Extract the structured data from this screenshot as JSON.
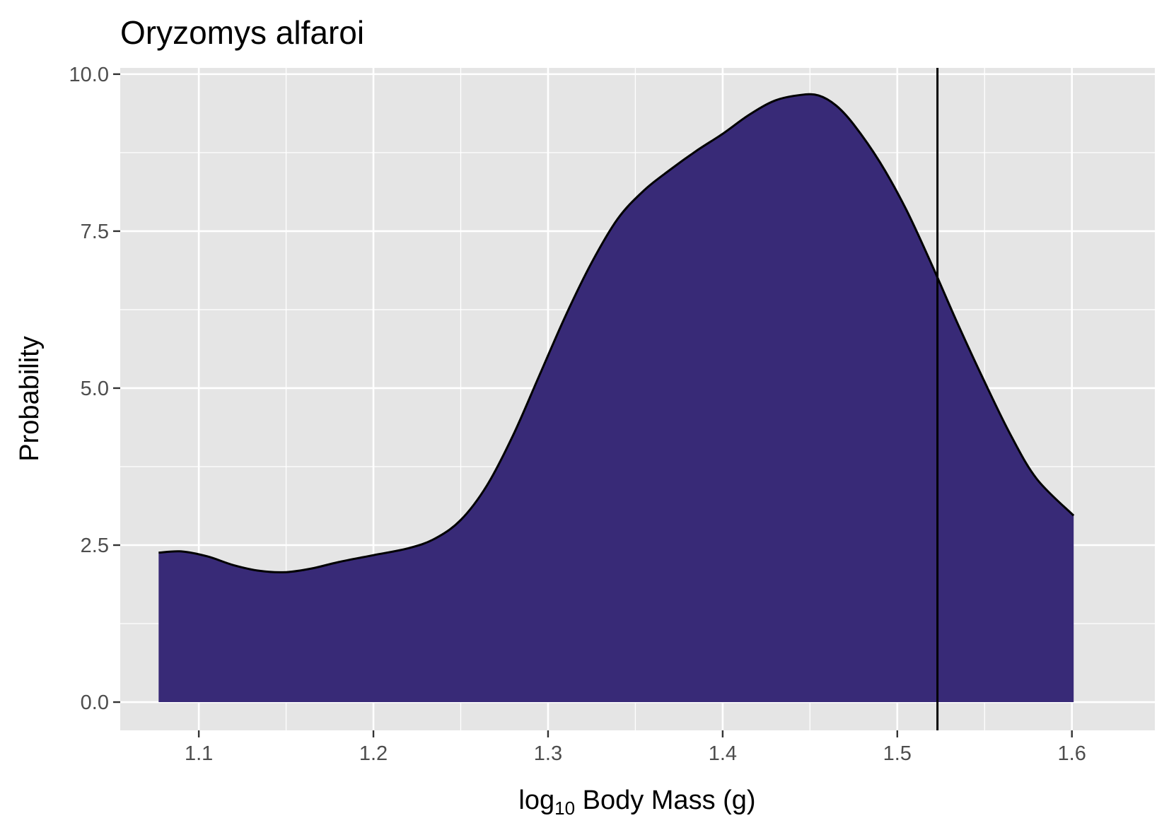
{
  "chart_data": {
    "type": "area",
    "title": "Oryzomys alfaroi",
    "xlabel": {
      "prefix": "log",
      "subscript": "10",
      "suffix": " Body Mass (g)"
    },
    "ylabel": "Probability",
    "xlim": [
      1.055,
      1.6475
    ],
    "ylim": [
      -0.45,
      10.1
    ],
    "x_ticks": [
      {
        "value": 1.1,
        "label": "1.1"
      },
      {
        "value": 1.2,
        "label": "1.2"
      },
      {
        "value": 1.3,
        "label": "1.3"
      },
      {
        "value": 1.4,
        "label": "1.4"
      },
      {
        "value": 1.5,
        "label": "1.5"
      },
      {
        "value": 1.6,
        "label": "1.6"
      }
    ],
    "y_ticks": [
      {
        "value": 0.0,
        "label": "0.0"
      },
      {
        "value": 2.5,
        "label": "2.5"
      },
      {
        "value": 5.0,
        "label": "5.0"
      },
      {
        "value": 7.5,
        "label": "7.5"
      },
      {
        "value": 10.0,
        "label": "10.0"
      }
    ],
    "grid": true,
    "density": {
      "x": [
        1.077,
        1.09,
        1.105,
        1.12,
        1.135,
        1.15,
        1.165,
        1.18,
        1.2,
        1.22,
        1.235,
        1.25,
        1.265,
        1.28,
        1.295,
        1.31,
        1.325,
        1.34,
        1.355,
        1.37,
        1.385,
        1.4,
        1.415,
        1.43,
        1.445,
        1.455,
        1.465,
        1.475,
        1.49,
        1.505,
        1.52,
        1.535,
        1.55,
        1.565,
        1.58,
        1.601
      ],
      "y": [
        2.38,
        2.4,
        2.32,
        2.18,
        2.09,
        2.07,
        2.13,
        2.23,
        2.34,
        2.45,
        2.6,
        2.9,
        3.45,
        4.25,
        5.2,
        6.15,
        7.0,
        7.7,
        8.15,
        8.48,
        8.78,
        9.05,
        9.35,
        9.58,
        9.67,
        9.66,
        9.5,
        9.2,
        8.6,
        7.85,
        6.95,
        6.0,
        5.1,
        4.25,
        3.55,
        2.97
      ],
      "fill": "#382a77",
      "line_color": "#000000"
    },
    "vline": {
      "x": 1.523,
      "color": "#000000"
    },
    "panel_background": "#e5e5e5",
    "grid_color": "#ffffff"
  }
}
